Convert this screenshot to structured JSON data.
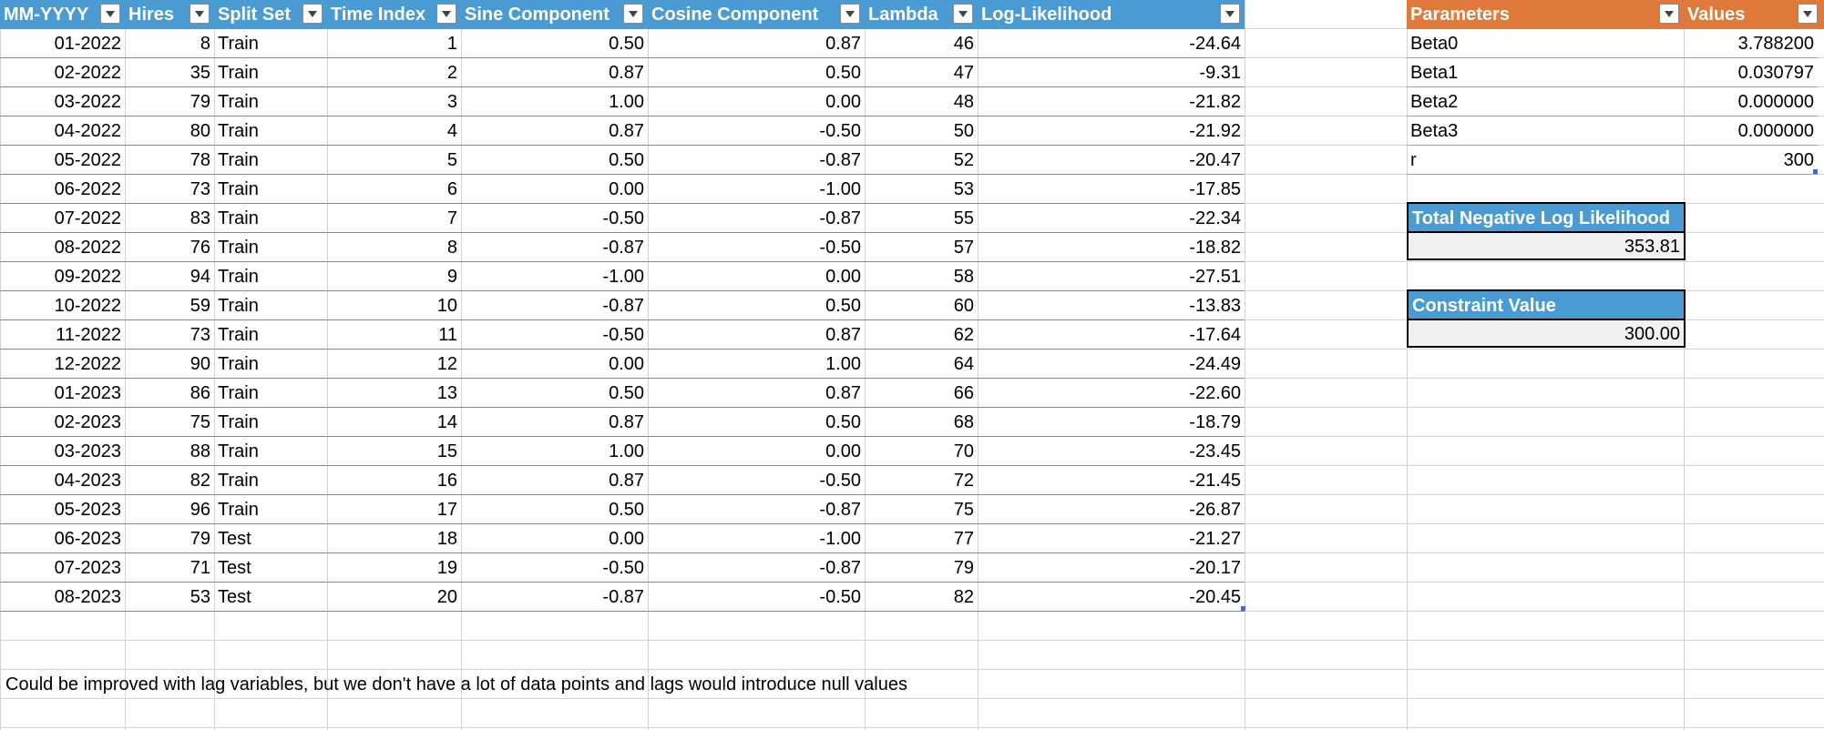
{
  "main_table": {
    "headers": [
      "MM-YYYY",
      "Hires",
      "Split Set",
      "Time Index",
      "Sine Component",
      "Cosine Component",
      "Lambda",
      "Log-Likelihood"
    ],
    "rows": [
      [
        "01-2022",
        "8",
        "Train",
        "1",
        "0.50",
        "0.87",
        "46",
        "-24.64"
      ],
      [
        "02-2022",
        "35",
        "Train",
        "2",
        "0.87",
        "0.50",
        "47",
        "-9.31"
      ],
      [
        "03-2022",
        "79",
        "Train",
        "3",
        "1.00",
        "0.00",
        "48",
        "-21.82"
      ],
      [
        "04-2022",
        "80",
        "Train",
        "4",
        "0.87",
        "-0.50",
        "50",
        "-21.92"
      ],
      [
        "05-2022",
        "78",
        "Train",
        "5",
        "0.50",
        "-0.87",
        "52",
        "-20.47"
      ],
      [
        "06-2022",
        "73",
        "Train",
        "6",
        "0.00",
        "-1.00",
        "53",
        "-17.85"
      ],
      [
        "07-2022",
        "83",
        "Train",
        "7",
        "-0.50",
        "-0.87",
        "55",
        "-22.34"
      ],
      [
        "08-2022",
        "76",
        "Train",
        "8",
        "-0.87",
        "-0.50",
        "57",
        "-18.82"
      ],
      [
        "09-2022",
        "94",
        "Train",
        "9",
        "-1.00",
        "0.00",
        "58",
        "-27.51"
      ],
      [
        "10-2022",
        "59",
        "Train",
        "10",
        "-0.87",
        "0.50",
        "60",
        "-13.83"
      ],
      [
        "11-2022",
        "73",
        "Train",
        "11",
        "-0.50",
        "0.87",
        "62",
        "-17.64"
      ],
      [
        "12-2022",
        "90",
        "Train",
        "12",
        "0.00",
        "1.00",
        "64",
        "-24.49"
      ],
      [
        "01-2023",
        "86",
        "Train",
        "13",
        "0.50",
        "0.87",
        "66",
        "-22.60"
      ],
      [
        "02-2023",
        "75",
        "Train",
        "14",
        "0.87",
        "0.50",
        "68",
        "-18.79"
      ],
      [
        "03-2023",
        "88",
        "Train",
        "15",
        "1.00",
        "0.00",
        "70",
        "-23.45"
      ],
      [
        "04-2023",
        "82",
        "Train",
        "16",
        "0.87",
        "-0.50",
        "72",
        "-21.45"
      ],
      [
        "05-2023",
        "96",
        "Train",
        "17",
        "0.50",
        "-0.87",
        "75",
        "-26.87"
      ],
      [
        "06-2023",
        "79",
        "Test",
        "18",
        "0.00",
        "-1.00",
        "77",
        "-21.27"
      ],
      [
        "07-2023",
        "71",
        "Test",
        "19",
        "-0.50",
        "-0.87",
        "79",
        "-20.17"
      ],
      [
        "08-2023",
        "53",
        "Test",
        "20",
        "-0.87",
        "-0.50",
        "82",
        "-20.45"
      ]
    ]
  },
  "params_table": {
    "headers": [
      "Parameters",
      "Values"
    ],
    "rows": [
      [
        "Beta0",
        "3.788200"
      ],
      [
        "Beta1",
        "0.030797"
      ],
      [
        "Beta2",
        "0.000000"
      ],
      [
        "Beta3",
        "0.000000"
      ],
      [
        "r",
        "300"
      ]
    ]
  },
  "total_nll": {
    "label": "Total Negative Log Likelihood",
    "value": "353.81"
  },
  "constraint": {
    "label": "Constraint Value",
    "value": "300.00"
  },
  "note": "Could be improved with lag variables, but we don't have a lot of data points and lags would introduce null values",
  "colors": {
    "table_header": "#4a9ad4",
    "params_header": "#e07a3c",
    "gridline": "#d4d4d4"
  }
}
